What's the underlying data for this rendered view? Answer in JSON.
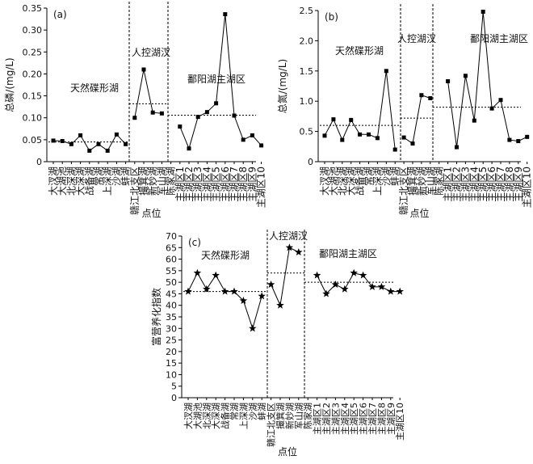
{
  "chart_data": [
    {
      "type": "line",
      "panel": "(a)",
      "ylabel": "总磷/(mg/L)",
      "xlabel": "点位",
      "ylim": [
        0,
        0.35
      ],
      "yticks": [
        "0",
        "0.05",
        "0.10",
        "0.15",
        "0.20",
        "0.25",
        "0.30",
        "0.35"
      ],
      "categories": [
        "大汊湖",
        "大湖池",
        "北深湖",
        "大深湖",
        "战备湖",
        "常湖",
        "上深湖",
        "沙湖",
        "蚌湖",
        "赣江北支区",
        "撮箕湖",
        "新妙湖",
        "军山湖",
        "陈家湖",
        "主湖区1",
        "主湖区2",
        "主湖区3",
        "主湖区4",
        "主湖区5",
        "主湖区6",
        "主湖区7",
        "主湖区8",
        "主湖区9",
        "主湖区10"
      ],
      "tick_labels": [
        "大汊湖",
        "大湖池",
        "北深湖",
        "大深湖",
        "战备湖",
        "常湖",
        "上深湖",
        "沙湖",
        "蚌湖",
        "赣江北支区",
        "撮箕湖",
        "新妙湖",
        "军山湖",
        "陈家湖",
        "主湖区1",
        "主湖区2",
        "主湖区3",
        "主湖区4",
        "主湖区5",
        "主湖区6",
        "主湖区7",
        "主湖区8",
        "主湖区9",
        "主湖区10"
      ],
      "marker": "square",
      "segments": [
        {
          "region": "天然碟形湖",
          "indices": [
            0,
            8
          ],
          "mean": 0.045
        },
        {
          "region": "人控湖汊",
          "indices": [
            9,
            13
          ],
          "mean": 0.132
        },
        {
          "region": "鄱阳湖主湖区",
          "indices": [
            14,
            23
          ],
          "mean": 0.106
        }
      ],
      "values": [
        0.048,
        0.047,
        0.04,
        0.06,
        0.025,
        0.04,
        0.025,
        0.062,
        0.04,
        0.1,
        0.21,
        0.112,
        0.11,
        null,
        0.08,
        0.03,
        0.102,
        0.113,
        0.133,
        0.336,
        0.105,
        0.05,
        0.06,
        0.037
      ]
    },
    {
      "type": "line",
      "panel": "(b)",
      "ylabel": "总氮/(mg/L)",
      "xlabel": "点位",
      "ylim": [
        0,
        2.5
      ],
      "yticks": [
        "0",
        "0.5",
        "1.0",
        "1.5",
        "2.0",
        "2.5"
      ],
      "categories": [
        "大汊湖",
        "大湖池",
        "北深湖",
        "大深湖",
        "战备湖",
        "常湖",
        "上深湖",
        "沙湖",
        "蚌湖",
        "赣江北支区",
        "撮箕湖",
        "新妙湖",
        "军山湖",
        "陈家湖",
        "主湖区1",
        "主湖区2",
        "主湖区3",
        "主湖区4",
        "主湖区5",
        "主湖区6",
        "主湖区7",
        "主湖区8",
        "主湖区9",
        "主湖区10"
      ],
      "tick_labels": [
        "大汊湖",
        "大湖池",
        "北深湖",
        "大深湖",
        "战备湖",
        "常湖",
        "上深湖",
        "沙湖",
        "蚌湖",
        "赣江北支区",
        "撮箕湖",
        "新妙湖",
        "军山湖",
        "陈家湖",
        "主湖区1",
        "主湖区2",
        "主湖区3",
        "主湖区4",
        "主湖区5",
        "主湖区6",
        "主湖区7",
        "主湖区8",
        "主湖区9",
        "主湖区10"
      ],
      "marker": "square",
      "segments": [
        {
          "region": "天然碟形湖",
          "indices": [
            0,
            8
          ],
          "mean": 0.6
        },
        {
          "region": "人控湖汊",
          "indices": [
            9,
            13
          ],
          "mean": 0.72
        },
        {
          "region": "鄱阳湖主湖区",
          "indices": [
            14,
            23
          ],
          "mean": 0.9
        }
      ],
      "values": [
        0.43,
        0.7,
        0.36,
        0.69,
        0.45,
        0.45,
        0.39,
        1.5,
        0.2,
        0.4,
        0.3,
        1.1,
        1.05,
        null,
        1.33,
        0.24,
        1.42,
        0.68,
        2.48,
        0.88,
        1.02,
        0.36,
        0.34,
        0.41
      ]
    },
    {
      "type": "line",
      "panel": "(c)",
      "ylabel": "富营养化指数",
      "xlabel": "点位",
      "ylim": [
        0,
        70
      ],
      "yticks": [
        "0",
        "5",
        "10",
        "15",
        "20",
        "25",
        "30",
        "35",
        "40",
        "45",
        "50",
        "55",
        "60",
        "65",
        "70"
      ],
      "categories": [
        "大汊湖",
        "大湖池",
        "北深湖",
        "大深湖",
        "战备湖",
        "常湖",
        "上深湖",
        "沙湖",
        "蚌湖",
        "赣江北支区",
        "撮箕湖",
        "新妙湖",
        "军山湖",
        "陈家湖",
        "主湖区1",
        "主湖区2",
        "主湖区3",
        "主湖区4",
        "主湖区5",
        "主湖区6",
        "主湖区7",
        "主湖区8",
        "主湖区9",
        "主湖区10"
      ],
      "tick_labels": [
        "大汊湖",
        "大湖池",
        "北深湖",
        "大深湖",
        "战备湖",
        "常湖",
        "上深湖",
        "沙湖",
        "蚌湖",
        "赣江北支区",
        "撮箕湖",
        "新妙湖",
        "军山湖",
        "陈家湖",
        "主湖区1",
        "主湖区2",
        "主湖区3",
        "主湖区4",
        "主湖区5",
        "主湖区6",
        "主湖区7",
        "主湖区8",
        "主湖区9",
        "主湖区10"
      ],
      "marker": "star",
      "segments": [
        {
          "region": "天然碟形湖",
          "indices": [
            0,
            8
          ],
          "mean": 46
        },
        {
          "region": "人控湖汊",
          "indices": [
            9,
            13
          ],
          "mean": 54
        },
        {
          "region": "鄱阳湖主湖区",
          "indices": [
            14,
            23
          ],
          "mean": 50
        }
      ],
      "values": [
        46,
        54,
        47,
        53,
        46,
        46,
        42,
        30,
        44,
        49,
        40,
        65,
        63,
        null,
        53,
        45,
        49,
        47,
        54,
        53,
        48,
        48,
        46,
        46
      ]
    }
  ]
}
